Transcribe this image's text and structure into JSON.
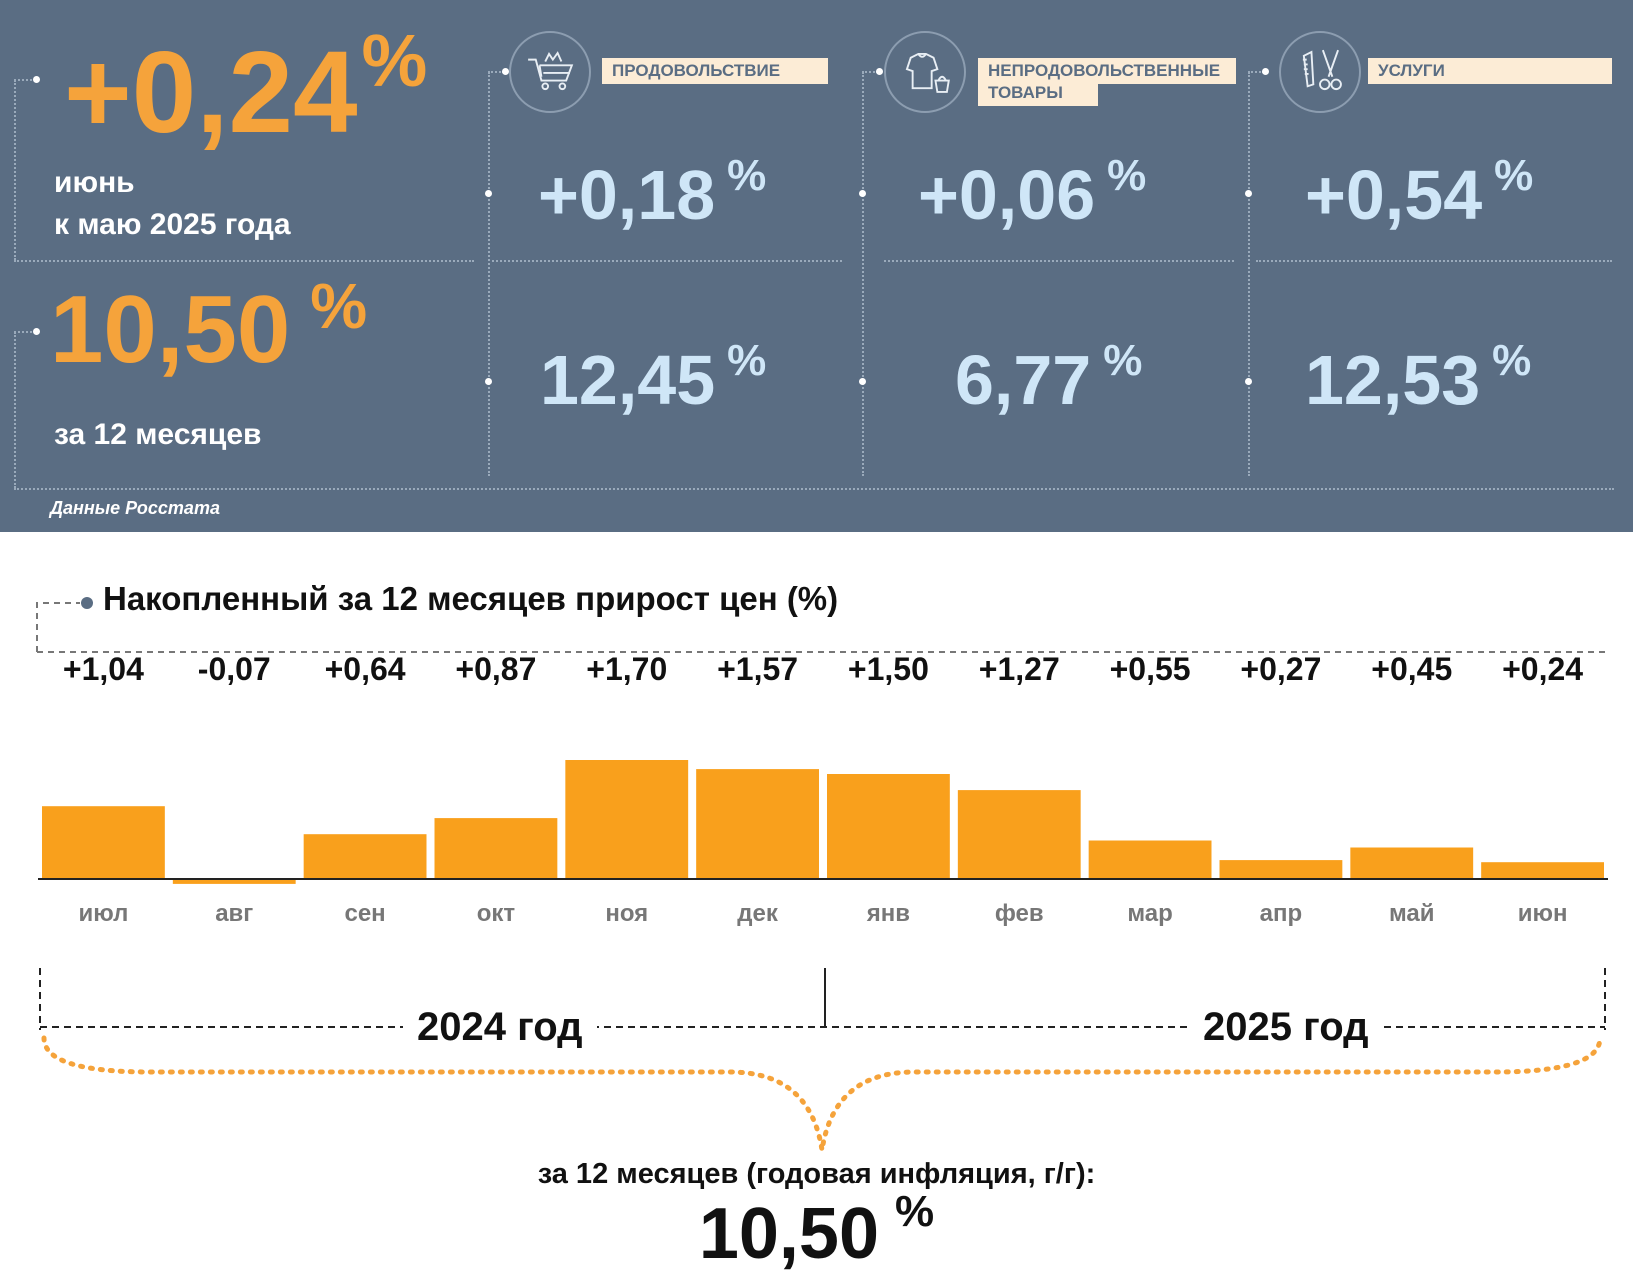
{
  "summary": {
    "monthly_value": "+0,24",
    "monthly_pct": "%",
    "monthly_label_line1": "июнь",
    "monthly_label_line2": "к маю 2025 года",
    "annual_value": "10,50",
    "annual_pct": "%",
    "annual_label": "за 12 месяцев",
    "source": "Данные Росстата"
  },
  "categories": [
    {
      "label": "ПРОДОВОЛЬСТВИЕ",
      "icon": "shopping-cart-icon",
      "monthly": "+0,18",
      "annual": "12,45",
      "pct": "%"
    },
    {
      "label_line1": "НЕПРОДОВОЛЬСТВЕННЫЕ",
      "label_line2": "ТОВАРЫ",
      "icon": "clothes-icon",
      "monthly": "+0,06",
      "annual": "6,77",
      "pct": "%"
    },
    {
      "label": "УСЛУГИ",
      "icon": "comb-scissors-icon",
      "monthly": "+0,54",
      "annual": "12,53",
      "pct": "%"
    }
  ],
  "colors": {
    "panel_bg": "#5a6d83",
    "accent_orange": "#f5a33b",
    "value_light_blue": "#cfe6f7",
    "bar_orange": "#f9a01c",
    "label_bg": "#fcecd6"
  },
  "chart_data": {
    "type": "bar",
    "title": "Накопленный за 12 месяцев прирост цен (%)",
    "categories": [
      "июл",
      "авг",
      "сен",
      "окт",
      "ноя",
      "дек",
      "янв",
      "фев",
      "мар",
      "апр",
      "май",
      "июн"
    ],
    "values": [
      1.04,
      -0.07,
      0.64,
      0.87,
      1.7,
      1.57,
      1.5,
      1.27,
      0.55,
      0.27,
      0.45,
      0.24
    ],
    "value_labels": [
      "+1,04",
      "-0,07",
      "+0,64",
      "+0,87",
      "+1,70",
      "+1,57",
      "+1,50",
      "+1,27",
      "+0,55",
      "+0,27",
      "+0,45",
      "+0,24"
    ],
    "years": [
      "2024 год",
      "2025 год"
    ],
    "total_caption": "за 12 месяцев (годовая инфляция, г/г):",
    "total_value": "10,50",
    "total_pct": "%",
    "grid": false
  }
}
